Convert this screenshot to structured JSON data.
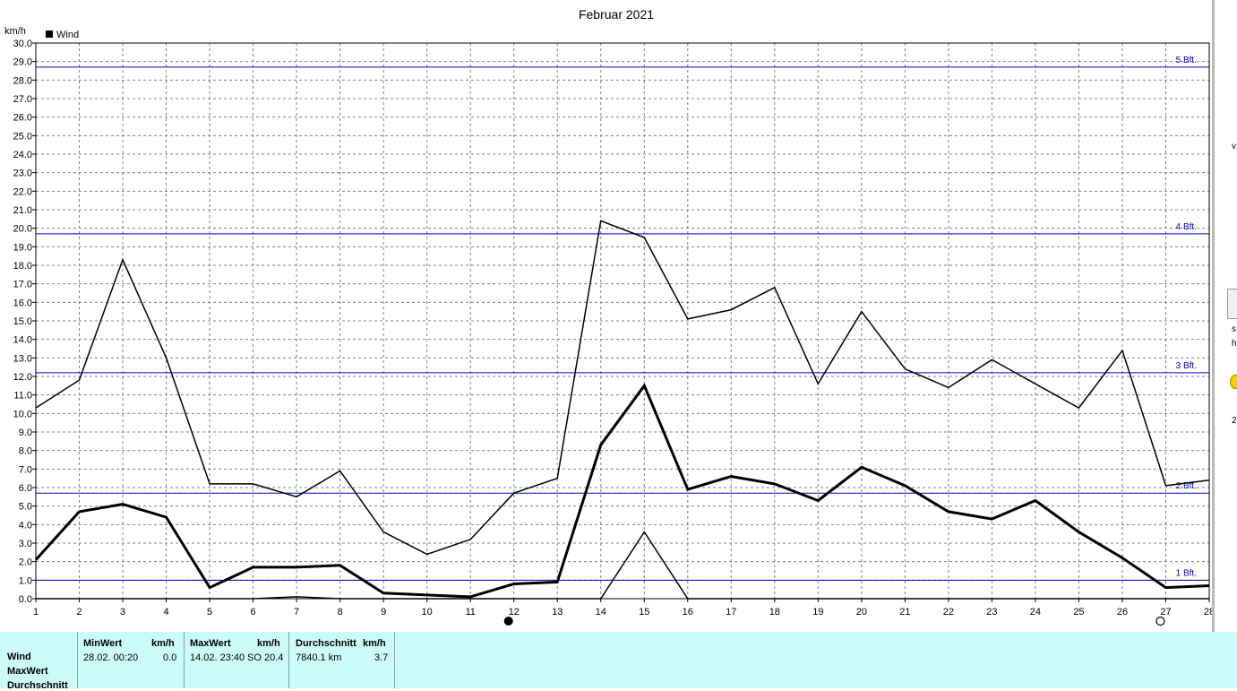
{
  "chart_data": {
    "type": "line",
    "title": "Februar 2021",
    "ylabel": "km/h",
    "legend": {
      "entries": [
        "Wind"
      ],
      "placement": "top-left"
    },
    "x": [
      1,
      2,
      3,
      4,
      5,
      6,
      7,
      8,
      9,
      10,
      11,
      12,
      13,
      14,
      15,
      16,
      17,
      18,
      19,
      20,
      21,
      22,
      23,
      24,
      25,
      26,
      27,
      28
    ],
    "x_range": [
      1,
      28
    ],
    "ylim": [
      0,
      30
    ],
    "y_step": 1,
    "grid": true,
    "series": [
      {
        "values": [
          10.3,
          11.8,
          18.3,
          13.0,
          6.2,
          6.2,
          5.5,
          6.9,
          3.6,
          2.4,
          3.2,
          5.7,
          6.5,
          20.4,
          19.5,
          15.1,
          15.6,
          16.8,
          11.6,
          15.5,
          12.4,
          11.4,
          12.9,
          11.6,
          10.3,
          13.4,
          6.1,
          6.4
        ],
        "stroke_width": 1.5
      },
      {
        "values": [
          2.1,
          4.7,
          5.1,
          4.4,
          0.6,
          1.7,
          1.7,
          1.8,
          0.3,
          0.2,
          0.1,
          0.8,
          0.9,
          8.3,
          11.5,
          5.9,
          6.6,
          6.2,
          5.3,
          7.1,
          6.1,
          4.7,
          4.3,
          5.3,
          3.6,
          2.2,
          0.6,
          0.7
        ],
        "stroke_width": 3
      },
      {
        "values": [
          0,
          0,
          0,
          0,
          0,
          0,
          0.1,
          0,
          0,
          0,
          0,
          0,
          0,
          0,
          3.6,
          0,
          0,
          0,
          0,
          0,
          0,
          0,
          0,
          0,
          0,
          0,
          0,
          0
        ],
        "stroke_width": 1.5
      }
    ],
    "reference_lines": [
      {
        "value": 28.7,
        "label": "5 Bft."
      },
      {
        "value": 19.7,
        "label": "4 Bft."
      },
      {
        "value": 12.2,
        "label": "3 Bft."
      },
      {
        "value": 5.7,
        "label": "2 Bft."
      },
      {
        "value": 1.0,
        "label": "1 Bft."
      }
    ],
    "moon_markers": [
      {
        "x": 12,
        "phase": "new-moon"
      },
      {
        "x": 27,
        "phase": "full-moon"
      }
    ],
    "colors": {
      "series": "#000000",
      "reference": "#0000c0",
      "grid": "#808080"
    }
  },
  "side_fragments": [
    "v",
    "s",
    "h",
    "2"
  ],
  "table": {
    "row_labels": [
      "Wind",
      "MaxWert",
      "Durchschnitt"
    ],
    "min": {
      "header": "MinWert",
      "unit": "km/h",
      "datetime": "28.02.  00:20",
      "value": "0.0"
    },
    "max": {
      "header": "MaxWert",
      "unit": "km/h",
      "datetime": "14.02.  23:40",
      "direction": "SO",
      "value": "20.4"
    },
    "avg": {
      "header": "Durchschnitt",
      "unit": "km/h",
      "distance": "7840.1 km",
      "value": "3.7"
    },
    "background": "#ccfbfa"
  }
}
